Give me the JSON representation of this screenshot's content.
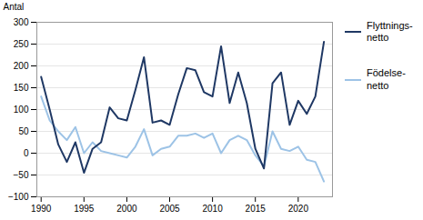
{
  "chart_data": {
    "type": "line",
    "x": [
      1990,
      1991,
      1992,
      1993,
      1994,
      1995,
      1996,
      1997,
      1998,
      1999,
      2000,
      2001,
      2002,
      2003,
      2004,
      2005,
      2006,
      2007,
      2008,
      2009,
      2010,
      2011,
      2012,
      2013,
      2014,
      2015,
      2016,
      2017,
      2018,
      2019,
      2020,
      2021,
      2022,
      2023
    ],
    "series": [
      {
        "name": "Flyttnings-\nnetto",
        "color": "#1f3864",
        "values": [
          175,
          100,
          20,
          -20,
          25,
          -45,
          10,
          25,
          105,
          80,
          75,
          145,
          220,
          70,
          75,
          65,
          135,
          195,
          190,
          140,
          130,
          245,
          115,
          185,
          115,
          10,
          -35,
          160,
          185,
          65,
          120,
          90,
          130,
          255
        ]
      },
      {
        "name": "Födelse-\nnetto",
        "color": "#9dc3e6",
        "values": [
          130,
          75,
          50,
          30,
          60,
          0,
          25,
          5,
          0,
          -5,
          -10,
          15,
          55,
          -5,
          10,
          15,
          40,
          40,
          45,
          35,
          45,
          0,
          30,
          40,
          30,
          -5,
          -30,
          50,
          10,
          5,
          15,
          -15,
          -20,
          -65
        ]
      }
    ],
    "ylabel": "Antal",
    "xlim": [
      1989.5,
      2024.0
    ],
    "xticks": [
      1990,
      1995,
      2000,
      2005,
      2010,
      2015,
      2020
    ],
    "ylim": [
      -100,
      300
    ],
    "yticks": [
      -100,
      -50,
      0,
      50,
      100,
      150,
      200,
      250,
      300
    ],
    "grid": true,
    "legend": "right"
  }
}
